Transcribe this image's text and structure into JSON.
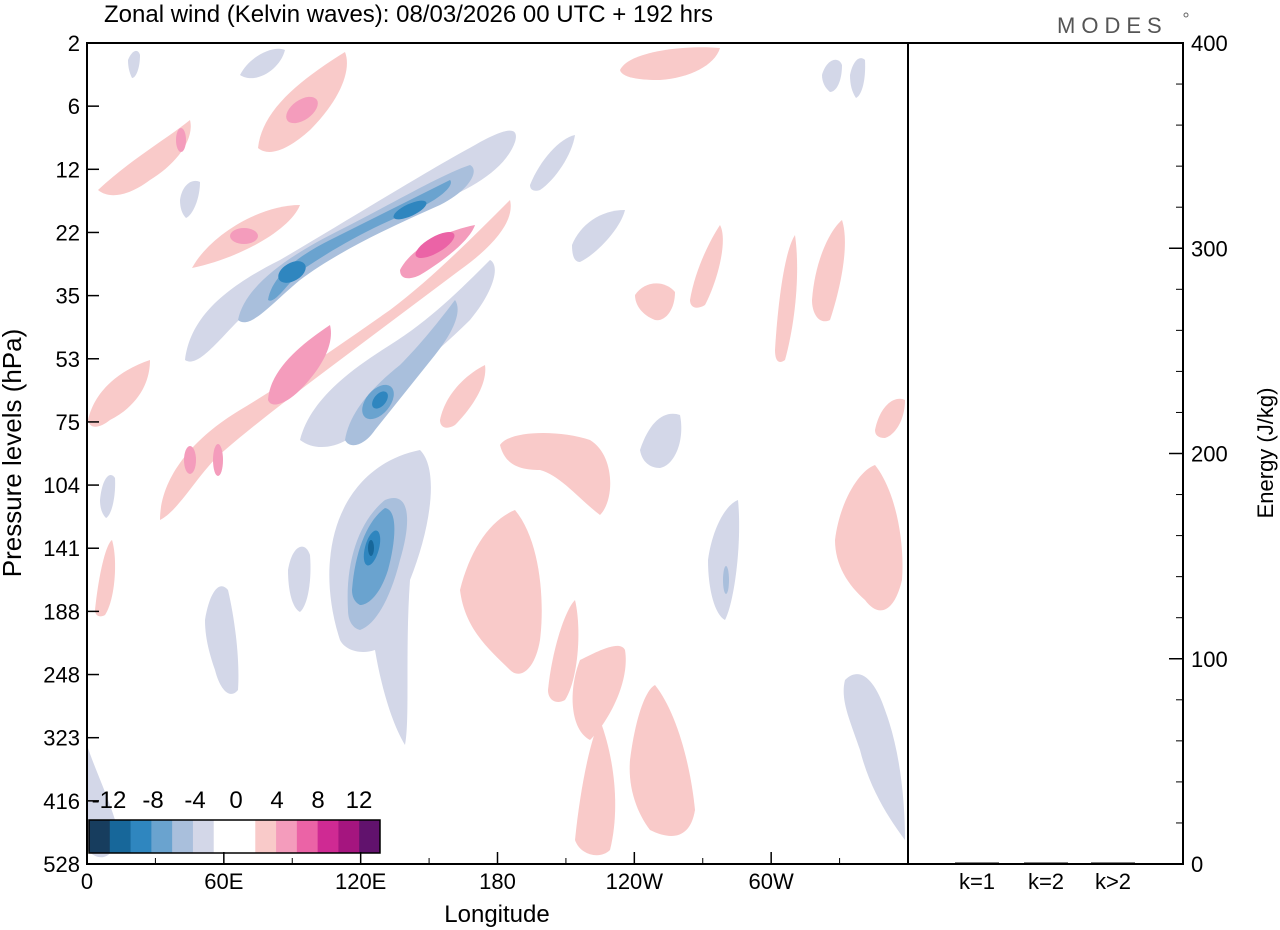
{
  "logo_text": "MODES",
  "chart_data": [
    {
      "type": "heatmap",
      "title": "Zonal wind (Kelvin waves):  08/03/2026  00 UTC  + 192 hrs",
      "xlabel": "Longitude",
      "ylabel": "Pressure levels (hPa)",
      "x_ticks": [
        "0",
        "60E",
        "120E",
        "180",
        "120W",
        "60W"
      ],
      "x_tick_degrees": [
        0,
        60,
        120,
        180,
        240,
        300
      ],
      "xlim": [
        0,
        360
      ],
      "y_ticks": [
        "2",
        "6",
        "12",
        "22",
        "35",
        "53",
        "75",
        "104",
        "141",
        "188",
        "248",
        "323",
        "416",
        "528"
      ],
      "colorbar": {
        "labels": [
          "-12",
          "-8",
          "-4",
          "0",
          "4",
          "8",
          "12"
        ],
        "colors": [
          "#173d5e",
          "#17679a",
          "#2f86bf",
          "#6aa3cf",
          "#a9bfdc",
          "#d3d7e8",
          "#ffffff",
          "#ffffff",
          "#f9cac9",
          "#f49cbc",
          "#eb63a6",
          "#cf2a93",
          "#a5157f",
          "#61126d"
        ]
      },
      "features": [
        {
          "kind": "negative",
          "lon": [
            63,
            188
          ],
          "level": [
            35,
            12
          ],
          "peak": -10
        },
        {
          "kind": "positive",
          "lon": [
            80,
            186
          ],
          "level": [
            75,
            22
          ],
          "peak": 8
        },
        {
          "kind": "positive",
          "lon": [
            45,
            100
          ],
          "level": [
            22,
            12
          ],
          "peak": 5
        },
        {
          "kind": "negative",
          "lon": [
            100,
            160
          ],
          "level": [
            104,
            35
          ],
          "peak": -9
        },
        {
          "kind": "negative",
          "lon": [
            115,
            150
          ],
          "level": [
            248,
            104
          ],
          "peak": -11
        },
        {
          "kind": "positive",
          "lon": [
            170,
            200
          ],
          "level": [
            248,
            141
          ],
          "peak": 4
        },
        {
          "kind": "positive",
          "lon": [
            5,
            35
          ],
          "level": [
            22,
            6
          ],
          "peak": 4
        },
        {
          "kind": "positive",
          "lon": [
            350,
            360
          ],
          "level": [
            248,
            104
          ],
          "peak": 4
        }
      ]
    },
    {
      "type": "bar",
      "categories": [
        "k=1",
        "k=2",
        "k>2"
      ],
      "values": [
        0,
        0,
        0
      ],
      "ylabel": "Energy (J/kg)",
      "ylim": [
        0,
        400
      ],
      "y_ticks": [
        "0",
        "100",
        "200",
        "300",
        "400"
      ]
    }
  ]
}
